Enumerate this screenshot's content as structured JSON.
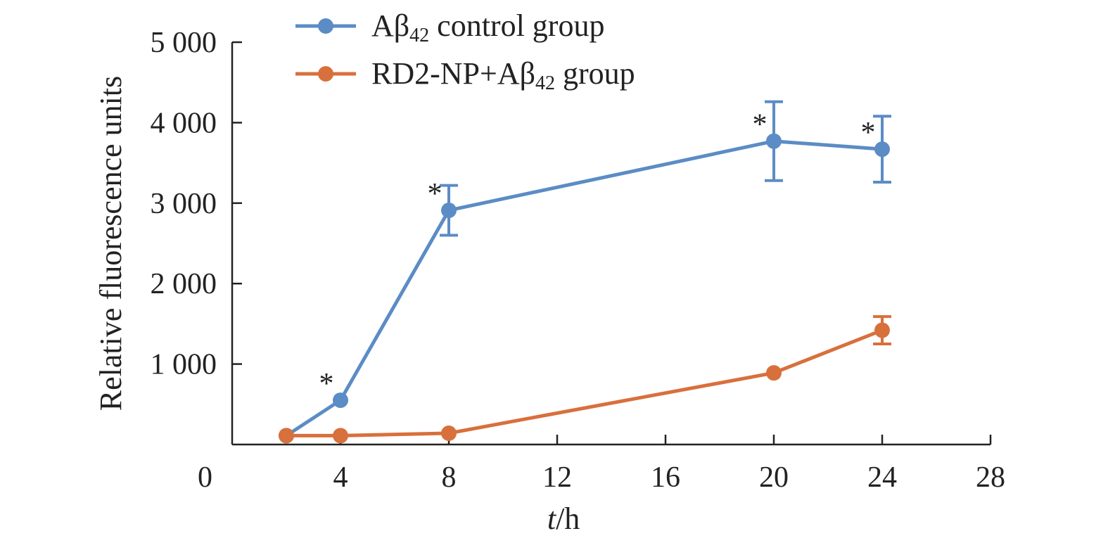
{
  "chart_data": {
    "type": "line",
    "xlabel_italic": "t",
    "xlabel_rest": "/h",
    "ylabel": "Relative fluorescence units",
    "xlim": [
      0,
      28
    ],
    "ylim": [
      0,
      5000
    ],
    "x_ticks": [
      {
        "value": 0,
        "label": "0"
      },
      {
        "value": 4,
        "label": "4"
      },
      {
        "value": 8,
        "label": "8"
      },
      {
        "value": 12,
        "label": "12"
      },
      {
        "value": 16,
        "label": "16"
      },
      {
        "value": 20,
        "label": "20"
      },
      {
        "value": 24,
        "label": "24"
      },
      {
        "value": 28,
        "label": "28"
      }
    ],
    "y_ticks": [
      {
        "value": 1000,
        "label": "1 000"
      },
      {
        "value": 2000,
        "label": "2 000"
      },
      {
        "value": 3000,
        "label": "3 000"
      },
      {
        "value": 4000,
        "label": "4 000"
      },
      {
        "value": 5000,
        "label": "5 000"
      }
    ],
    "legend_position": "top-left",
    "grid": false,
    "series": [
      {
        "name_main": "Aβ",
        "name_sub": "42",
        "name_rest": " control group",
        "color": "#5b8cc5",
        "points": [
          {
            "x": 2,
            "y": 110,
            "err": 0,
            "sig": false
          },
          {
            "x": 4,
            "y": 550,
            "err": 0,
            "sig": true
          },
          {
            "x": 8,
            "y": 2910,
            "err": 310,
            "sig": true
          },
          {
            "x": 20,
            "y": 3770,
            "err": 490,
            "sig": true
          },
          {
            "x": 24,
            "y": 3670,
            "err": 410,
            "sig": true
          }
        ]
      },
      {
        "name_main": "RD2-NP+Aβ",
        "name_sub": "42",
        "name_rest": " group",
        "color": "#d8703c",
        "points": [
          {
            "x": 2,
            "y": 110,
            "err": 0,
            "sig": false
          },
          {
            "x": 4,
            "y": 110,
            "err": 0,
            "sig": false
          },
          {
            "x": 8,
            "y": 140,
            "err": 0,
            "sig": false
          },
          {
            "x": 20,
            "y": 890,
            "err": 0,
            "sig": false
          },
          {
            "x": 24,
            "y": 1420,
            "err": 170,
            "sig": false
          }
        ]
      }
    ],
    "significance_marker": "*"
  }
}
